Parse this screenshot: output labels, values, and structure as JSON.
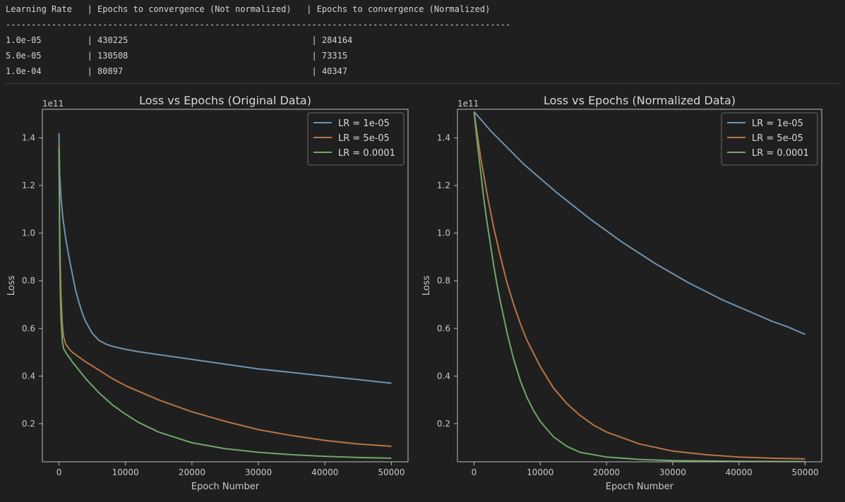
{
  "console": {
    "header": "Learning Rate   | Epochs to convergence (Not normalized)   | Epochs to convergence (Normalized)",
    "divider": "---------------------------------------------------------------------------------------------------",
    "rows": [
      "1.0e-05         | 430225                                    | 284164",
      "5.0e-05         | 130508                                    | 73315",
      "1.0e-04         | 80897                                     | 40347"
    ]
  },
  "colors": {
    "lr1": "#6f93b0",
    "lr2": "#b87545",
    "lr3": "#6fa868",
    "bg": "#1f1f1f",
    "axes": "#bdbdbd"
  },
  "chart_data": [
    {
      "type": "line",
      "title": "Loss vs Epochs (Original Data)",
      "xlabel": "Epoch Number",
      "ylabel": "Loss",
      "offset_label": "1e11",
      "xlim": [
        -2500,
        52500
      ],
      "ylim": [
        0.04,
        1.52
      ],
      "xticks": [
        0,
        10000,
        20000,
        30000,
        40000,
        50000
      ],
      "xtick_labels": [
        "0",
        "10000",
        "20000",
        "30000",
        "40000",
        "50000"
      ],
      "yticks": [
        0.2,
        0.4,
        0.6,
        0.8,
        1.0,
        1.2,
        1.4
      ],
      "ytick_labels": [
        "0.2",
        "0.4",
        "0.6",
        "0.8",
        "1.0",
        "1.2",
        "1.4"
      ],
      "legend_position": "top-right",
      "series": [
        {
          "name": "LR = 1e-05",
          "color": "#6f93b0",
          "x": [
            0,
            100,
            300,
            600,
            1000,
            1500,
            2000,
            2500,
            3000,
            3500,
            4000,
            5000,
            6000,
            7000,
            8000,
            10000,
            12000,
            15000,
            20000,
            25000,
            30000,
            35000,
            40000,
            45000,
            50000
          ],
          "y": [
            1.42,
            1.25,
            1.15,
            1.06,
            0.98,
            0.9,
            0.83,
            0.76,
            0.71,
            0.665,
            0.63,
            0.58,
            0.55,
            0.535,
            0.525,
            0.512,
            0.502,
            0.49,
            0.47,
            0.45,
            0.43,
            0.415,
            0.4,
            0.385,
            0.37
          ]
        },
        {
          "name": "LR = 5e-05",
          "color": "#b87545",
          "x": [
            0,
            100,
            200,
            300,
            500,
            700,
            1000,
            1500,
            2000,
            3000,
            4000,
            6000,
            8000,
            10000,
            15000,
            20000,
            25000,
            30000,
            35000,
            40000,
            45000,
            50000
          ],
          "y": [
            1.37,
            1.05,
            0.86,
            0.74,
            0.62,
            0.565,
            0.535,
            0.515,
            0.5,
            0.48,
            0.46,
            0.425,
            0.39,
            0.36,
            0.3,
            0.25,
            0.21,
            0.175,
            0.15,
            0.13,
            0.115,
            0.105
          ]
        },
        {
          "name": "LR = 0.0001",
          "color": "#6fa868",
          "x": [
            0,
            100,
            200,
            300,
            500,
            700,
            1000,
            1500,
            2000,
            3000,
            4000,
            6000,
            8000,
            10000,
            12000,
            15000,
            20000,
            25000,
            30000,
            35000,
            40000,
            45000,
            50000
          ],
          "y": [
            1.36,
            0.95,
            0.76,
            0.64,
            0.545,
            0.515,
            0.5,
            0.48,
            0.46,
            0.425,
            0.39,
            0.33,
            0.28,
            0.24,
            0.205,
            0.165,
            0.12,
            0.095,
            0.08,
            0.07,
            0.063,
            0.058,
            0.055
          ]
        }
      ]
    },
    {
      "type": "line",
      "title": "Loss vs Epochs (Normalized Data)",
      "xlabel": "Epoch Number",
      "ylabel": "Loss",
      "offset_label": "1e11",
      "xlim": [
        -2500,
        52500
      ],
      "ylim": [
        0.04,
        1.52
      ],
      "xticks": [
        0,
        10000,
        20000,
        30000,
        40000,
        50000
      ],
      "xtick_labels": [
        "0",
        "10000",
        "20000",
        "30000",
        "40000",
        "50000"
      ],
      "yticks": [
        0.2,
        0.4,
        0.6,
        0.8,
        1.0,
        1.2,
        1.4
      ],
      "ytick_labels": [
        "0.2",
        "0.4",
        "0.6",
        "0.8",
        "1.0",
        "1.2",
        "1.4"
      ],
      "legend_position": "top-right",
      "series": [
        {
          "name": "LR = 1e-05",
          "color": "#6f93b0",
          "x": [
            0,
            2500,
            5000,
            7500,
            10000,
            12500,
            15000,
            17500,
            20000,
            22500,
            25000,
            27500,
            30000,
            32500,
            35000,
            37500,
            40000,
            42500,
            45000,
            47500,
            50000
          ],
          "y": [
            1.51,
            1.43,
            1.36,
            1.29,
            1.23,
            1.17,
            1.115,
            1.06,
            1.01,
            0.96,
            0.915,
            0.87,
            0.83,
            0.79,
            0.755,
            0.72,
            0.69,
            0.66,
            0.63,
            0.605,
            0.575
          ]
        },
        {
          "name": "LR = 5e-05",
          "color": "#b87545",
          "x": [
            0,
            1000,
            2000,
            3000,
            4000,
            5000,
            6000,
            7000,
            8000,
            10000,
            12000,
            14000,
            16000,
            18000,
            20000,
            25000,
            30000,
            35000,
            40000,
            45000,
            50000
          ],
          "y": [
            1.51,
            1.32,
            1.16,
            1.02,
            0.9,
            0.79,
            0.7,
            0.62,
            0.55,
            0.44,
            0.35,
            0.285,
            0.235,
            0.195,
            0.165,
            0.115,
            0.085,
            0.07,
            0.06,
            0.055,
            0.052
          ]
        },
        {
          "name": "LR = 0.0001",
          "color": "#6fa868",
          "x": [
            0,
            500,
            1000,
            1500,
            2000,
            2500,
            3000,
            3500,
            4000,
            5000,
            6000,
            7000,
            8000,
            9000,
            10000,
            12000,
            14000,
            16000,
            20000,
            25000,
            30000,
            40000,
            50000
          ],
          "y": [
            1.51,
            1.38,
            1.26,
            1.14,
            1.04,
            0.95,
            0.86,
            0.78,
            0.71,
            0.58,
            0.47,
            0.38,
            0.31,
            0.255,
            0.21,
            0.145,
            0.105,
            0.08,
            0.06,
            0.05,
            0.045,
            0.042,
            0.041
          ]
        }
      ]
    }
  ]
}
